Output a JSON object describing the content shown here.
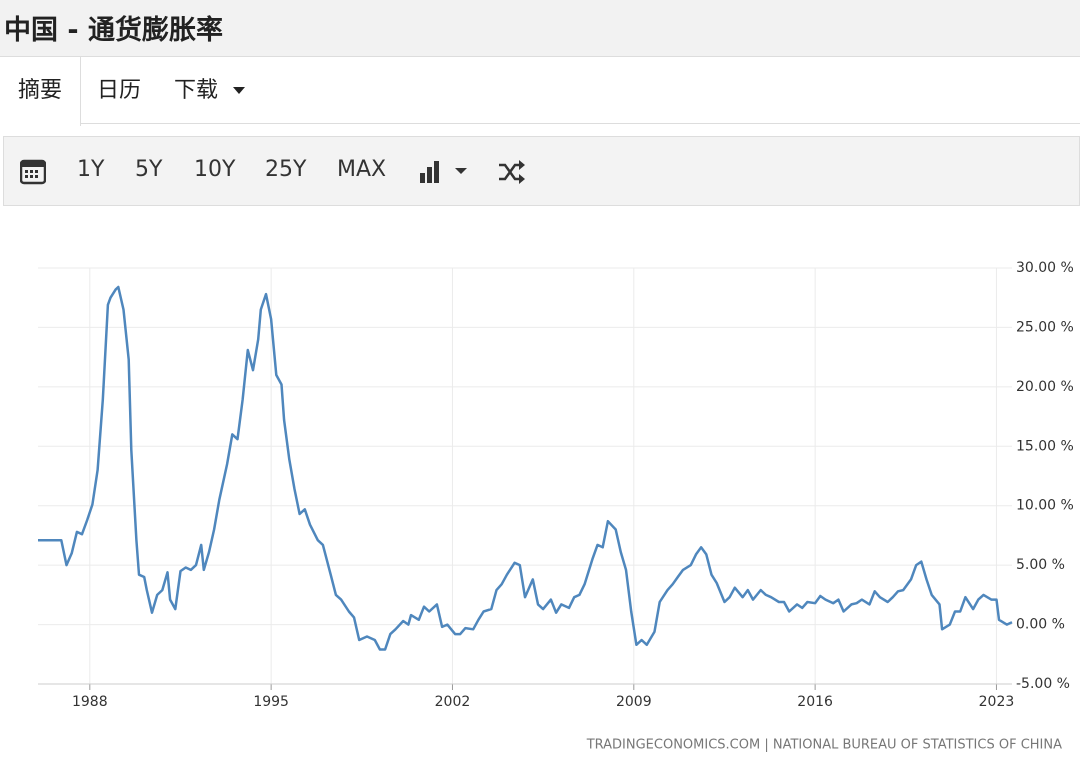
{
  "header": {
    "title": "中国 - 通货膨胀率"
  },
  "tabs": [
    "摘要",
    "日历",
    "下载"
  ],
  "toolbar": {
    "ranges": [
      "1Y",
      "5Y",
      "10Y",
      "25Y",
      "MAX"
    ]
  },
  "chart_data": {
    "type": "line",
    "color": "#4f87bd",
    "grid": true,
    "source": "TRADINGECONOMICS.COM | NATIONAL BUREAU OF STATISTICS OF CHINA",
    "xlim": [
      1986,
      2023.6
    ],
    "xticks": [
      1988,
      1995,
      2002,
      2009,
      2016,
      2023
    ],
    "ylim": [
      -5,
      30
    ],
    "yticks": [
      {
        "value": 30,
        "label": "30.00 %"
      },
      {
        "value": 25,
        "label": "25.00 %"
      },
      {
        "value": 20,
        "label": "20.00 %"
      },
      {
        "value": 15,
        "label": "15.00 %"
      },
      {
        "value": 10,
        "label": "10.00 %"
      },
      {
        "value": 5,
        "label": "5.00 %"
      },
      {
        "value": 0,
        "label": "0.00 %"
      },
      {
        "value": -5,
        "label": "-5.00 %"
      }
    ],
    "x": [
      1986.0,
      1986.9,
      1987.1,
      1987.3,
      1987.5,
      1987.7,
      1987.9,
      1988.1,
      1988.3,
      1988.5,
      1988.7,
      1988.8,
      1989.0,
      1989.1,
      1989.3,
      1989.5,
      1989.6,
      1989.8,
      1989.9,
      1990.1,
      1990.2,
      1990.4,
      1990.6,
      1990.8,
      1991.0,
      1991.1,
      1991.3,
      1991.5,
      1991.7,
      1991.9,
      1992.1,
      1992.3,
      1992.4,
      1992.6,
      1992.8,
      1993.0,
      1993.3,
      1993.5,
      1993.7,
      1993.9,
      1994.1,
      1994.3,
      1994.5,
      1994.6,
      1994.8,
      1995.0,
      1995.2,
      1995.4,
      1995.5,
      1995.7,
      1995.9,
      1996.1,
      1996.3,
      1996.5,
      1996.8,
      1997.0,
      1997.3,
      1997.5,
      1997.7,
      1998.0,
      1998.2,
      1998.4,
      1998.7,
      1999.0,
      1999.2,
      1999.4,
      1999.6,
      1999.8,
      2000.1,
      2000.3,
      2000.4,
      2000.7,
      2000.9,
      2001.1,
      2001.4,
      2001.6,
      2001.8,
      2002.1,
      2002.3,
      2002.5,
      2002.8,
      2003.0,
      2003.2,
      2003.5,
      2003.7,
      2003.9,
      2004.1,
      2004.4,
      2004.6,
      2004.8,
      2005.1,
      2005.3,
      2005.5,
      2005.8,
      2006.0,
      2006.2,
      2006.5,
      2006.7,
      2006.9,
      2007.1,
      2007.4,
      2007.6,
      2007.8,
      2008.0,
      2008.3,
      2008.5,
      2008.7,
      2008.9,
      2009.1,
      2009.3,
      2009.5,
      2009.8,
      2010.0,
      2010.3,
      2010.5,
      2010.7,
      2010.9,
      2011.2,
      2011.4,
      2011.6,
      2011.8,
      2012.0,
      2012.2,
      2012.5,
      2012.7,
      2012.9,
      2013.2,
      2013.4,
      2013.6,
      2013.9,
      2014.1,
      2014.3,
      2014.6,
      2014.8,
      2015.0,
      2015.3,
      2015.5,
      2015.7,
      2016.0,
      2016.2,
      2016.4,
      2016.7,
      2016.9,
      2017.1,
      2017.4,
      2017.6,
      2017.8,
      2018.1,
      2018.3,
      2018.5,
      2018.8,
      2019.0,
      2019.2,
      2019.4,
      2019.7,
      2019.9,
      2020.1,
      2020.3,
      2020.5,
      2020.8,
      2020.9,
      2021.2,
      2021.4,
      2021.6,
      2021.8,
      2022.1,
      2022.3,
      2022.5,
      2022.8,
      2023.0,
      2023.1,
      2023.4,
      2023.6
    ],
    "values": [
      7.1,
      7.1,
      5.0,
      6.0,
      7.8,
      7.6,
      8.8,
      10.1,
      13.0,
      18.9,
      26.9,
      27.5,
      28.2,
      28.4,
      26.5,
      22.3,
      14.7,
      7.1,
      4.2,
      4.0,
      2.9,
      1.0,
      2.5,
      2.9,
      4.4,
      2.1,
      1.3,
      4.5,
      4.8,
      4.6,
      5.0,
      6.7,
      4.6,
      6.1,
      8.0,
      10.5,
      13.5,
      16.0,
      15.6,
      18.9,
      23.1,
      21.4,
      24.0,
      26.5,
      27.8,
      25.7,
      21.0,
      20.2,
      17.2,
      13.9,
      11.4,
      9.3,
      9.7,
      8.4,
      7.1,
      6.7,
      4.2,
      2.5,
      2.1,
      1.1,
      0.6,
      -1.3,
      -1.0,
      -1.3,
      -2.1,
      -2.1,
      -0.8,
      -0.4,
      0.3,
      0.0,
      0.8,
      0.4,
      1.5,
      1.1,
      1.7,
      -0.2,
      0.0,
      -0.8,
      -0.8,
      -0.3,
      -0.4,
      0.4,
      1.1,
      1.3,
      2.9,
      3.4,
      4.2,
      5.2,
      5.0,
      2.3,
      3.8,
      1.7,
      1.3,
      2.1,
      1.0,
      1.7,
      1.4,
      2.3,
      2.5,
      3.4,
      5.5,
      6.7,
      6.5,
      8.7,
      8.0,
      6.1,
      4.6,
      1.1,
      -1.7,
      -1.3,
      -1.7,
      -0.6,
      1.9,
      2.9,
      3.4,
      4.0,
      4.6,
      5.0,
      5.9,
      6.5,
      5.9,
      4.2,
      3.5,
      1.9,
      2.3,
      3.1,
      2.3,
      2.9,
      2.1,
      2.9,
      2.5,
      2.3,
      1.9,
      1.9,
      1.1,
      1.7,
      1.4,
      1.9,
      1.8,
      2.4,
      2.1,
      1.8,
      2.1,
      1.1,
      1.7,
      1.8,
      2.1,
      1.7,
      2.8,
      2.3,
      1.9,
      2.3,
      2.8,
      2.9,
      3.8,
      5.0,
      5.3,
      3.8,
      2.5,
      1.7,
      -0.4,
      0.0,
      1.1,
      1.1,
      2.3,
      1.3,
      2.1,
      2.5,
      2.1,
      2.1,
      0.4,
      0.0,
      0.2
    ]
  }
}
